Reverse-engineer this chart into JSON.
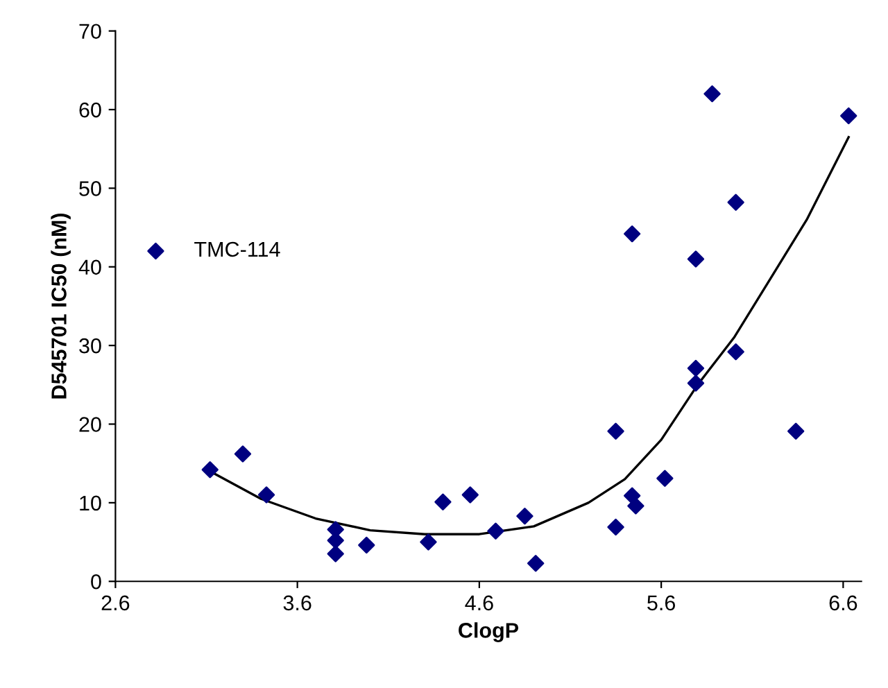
{
  "chart_data": {
    "type": "scatter",
    "xlabel": "ClogP",
    "ylabel": "D545701 IC50 (nM)",
    "xlim": [
      2.6,
      6.7
    ],
    "ylim": [
      0,
      70
    ],
    "xticks": [
      2.6,
      3.6,
      4.6,
      5.6,
      6.6
    ],
    "yticks": [
      0,
      10,
      20,
      30,
      40,
      50,
      60,
      70
    ],
    "grid": false,
    "legend": "left",
    "marker": "diamond",
    "series": [
      {
        "name": "TMC-114",
        "color": "#000080",
        "x": [
          3.12,
          3.3,
          3.43,
          3.81,
          3.81,
          3.81,
          3.98,
          4.32,
          4.4,
          4.55,
          4.69,
          4.85,
          4.91,
          5.35,
          5.35,
          5.44,
          5.46,
          5.44,
          5.62,
          5.79,
          5.79,
          5.79,
          5.88,
          6.01,
          6.01,
          6.34,
          6.63
        ],
        "values": [
          14.2,
          16.2,
          11,
          6.6,
          5.2,
          3.5,
          4.6,
          5,
          10.1,
          11,
          6.4,
          8.3,
          2.3,
          6.9,
          19.1,
          10.9,
          9.6,
          44.2,
          13.1,
          41,
          27.1,
          25.2,
          62,
          48.2,
          29.2,
          19.1,
          59.2
        ]
      },
      {
        "type": "line",
        "color": "#000000",
        "line_style": "solid",
        "marker": "none",
        "x": [
          3.12,
          3.4,
          3.7,
          4.0,
          4.3,
          4.6,
          4.9,
          5.2,
          5.4,
          5.6,
          5.8,
          6.0,
          6.2,
          6.4,
          6.63
        ],
        "values": [
          14,
          10.5,
          8,
          6.5,
          6,
          6,
          7,
          10,
          13,
          18,
          25,
          31,
          38.5,
          46,
          56.5
        ]
      }
    ]
  }
}
